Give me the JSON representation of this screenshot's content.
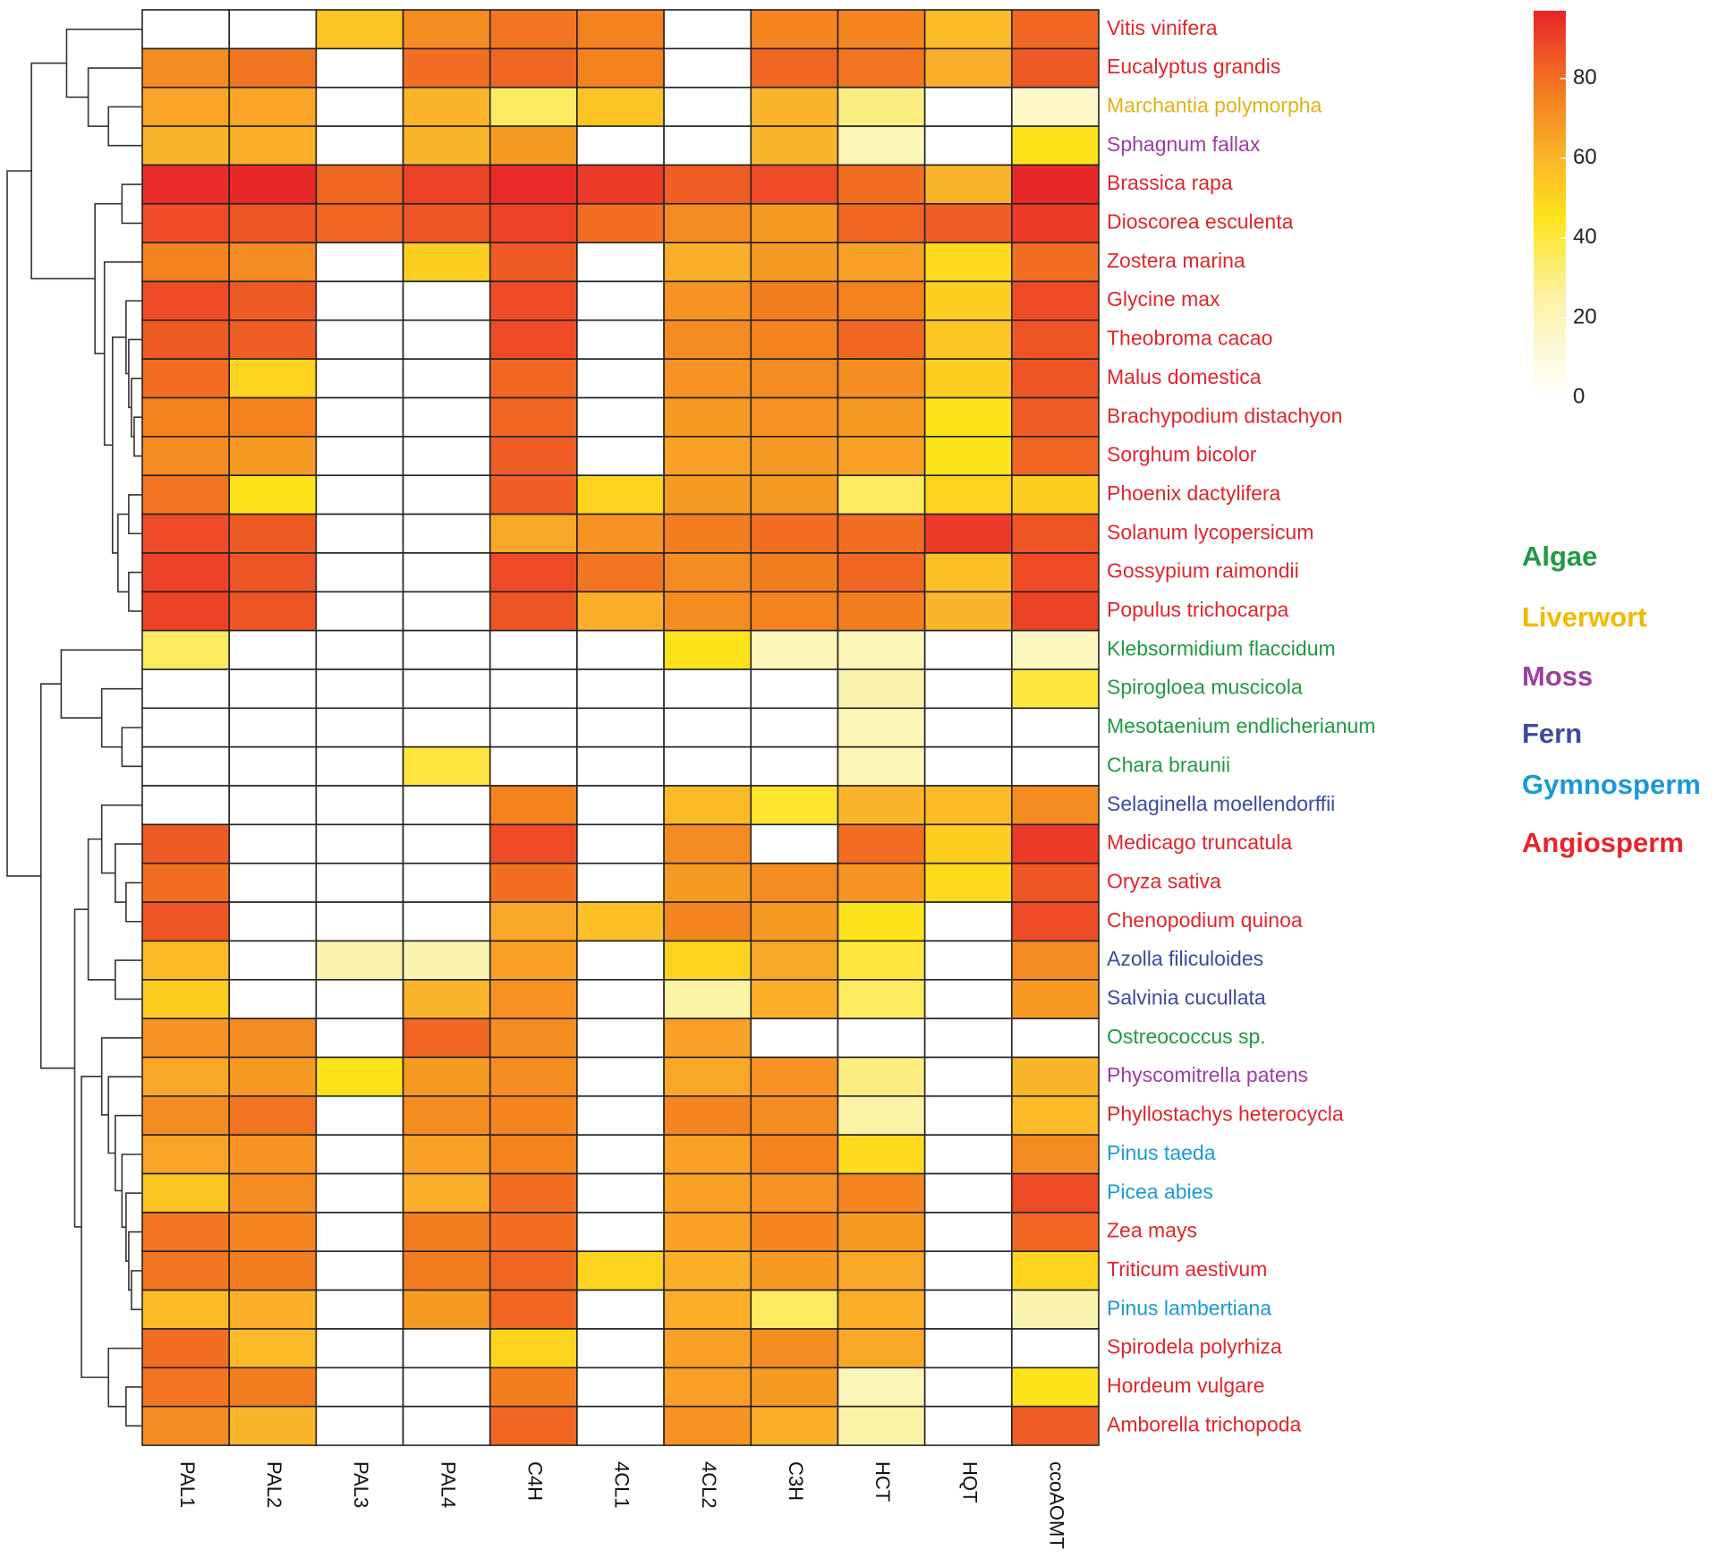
{
  "chart_data": {
    "type": "heatmap",
    "rows": [
      "Vitis vinifera",
      "Eucalyptus grandis",
      "Marchantia polymorpha",
      "Sphagnum fallax",
      "Brassica rapa",
      "Dioscorea esculenta",
      "Zostera marina",
      "Glycine max",
      "Theobroma cacao",
      "Malus domestica",
      "Brachypodium distachyon",
      "Sorghum bicolor",
      "Phoenix dactylifera",
      "Solanum lycopersicum",
      "Gossypium raimondii",
      "Populus trichocarpa",
      "Klebsormidium flaccidum",
      "Spirogloea muscicola",
      "Mesotaenium endlicherianum",
      "Chara braunii",
      "Selaginella moellendorffii",
      "Medicago truncatula",
      "Oryza sativa",
      "Chenopodium quinoa",
      "Azolla filiculoides",
      "Salvinia cucullata",
      "Ostreococcus sp.",
      "Physcomitrella patens",
      "Phyllostachys heterocycla",
      "Pinus taeda",
      "Picea abies",
      "Zea mays",
      "Triticum aestivum",
      "Pinus lambertiana",
      "Spirodela polyrhiza",
      "Hordeum vulgare",
      "Amborella trichopoda"
    ],
    "row_colors": [
      "#e0262b",
      "#e0262b",
      "#e0b414",
      "#9b3fa0",
      "#e0262b",
      "#e0262b",
      "#e0262b",
      "#e0262b",
      "#e0262b",
      "#e0262b",
      "#e0262b",
      "#e0262b",
      "#e0262b",
      "#e0262b",
      "#e0262b",
      "#e0262b",
      "#1f9a45",
      "#1f9a45",
      "#1f9a45",
      "#1f9a45",
      "#3d4aa0",
      "#e0262b",
      "#e0262b",
      "#e0262b",
      "#3d4aa0",
      "#3d4aa0",
      "#1f9a45",
      "#9b3fa0",
      "#e0262b",
      "#1a9ad6",
      "#1a9ad6",
      "#e0262b",
      "#e0262b",
      "#1a9ad6",
      "#e0262b",
      "#e0262b",
      "#e0262b"
    ],
    "columns": [
      "PAL1",
      "PAL2",
      "PAL3",
      "PAL4",
      "C4H",
      "4CL1",
      "4CL2",
      "C3H",
      "HCT",
      "HQT",
      "ccoAOMT"
    ],
    "values": [
      [
        0,
        0,
        55,
        72,
        78,
        75,
        0,
        74,
        74,
        58,
        82
      ],
      [
        72,
        78,
        0,
        80,
        82,
        75,
        0,
        82,
        78,
        62,
        85
      ],
      [
        65,
        65,
        0,
        60,
        35,
        55,
        0,
        60,
        30,
        0,
        15
      ],
      [
        60,
        62,
        0,
        60,
        68,
        0,
        0,
        60,
        20,
        0,
        45
      ],
      [
        95,
        96,
        82,
        90,
        95,
        92,
        84,
        88,
        80,
        60,
        96
      ],
      [
        88,
        86,
        82,
        86,
        90,
        80,
        72,
        68,
        82,
        84,
        92
      ],
      [
        75,
        72,
        0,
        52,
        85,
        0,
        62,
        68,
        66,
        48,
        80
      ],
      [
        88,
        85,
        0,
        0,
        88,
        0,
        70,
        76,
        75,
        52,
        88
      ],
      [
        85,
        84,
        0,
        0,
        88,
        0,
        72,
        75,
        82,
        55,
        86
      ],
      [
        80,
        50,
        0,
        0,
        82,
        0,
        70,
        72,
        72,
        52,
        86
      ],
      [
        75,
        75,
        0,
        0,
        82,
        0,
        68,
        70,
        68,
        45,
        84
      ],
      [
        72,
        68,
        0,
        0,
        84,
        0,
        66,
        68,
        66,
        45,
        82
      ],
      [
        78,
        45,
        0,
        0,
        84,
        50,
        68,
        68,
        35,
        50,
        52
      ],
      [
        88,
        85,
        0,
        0,
        64,
        70,
        76,
        80,
        80,
        92,
        86
      ],
      [
        90,
        86,
        0,
        0,
        88,
        78,
        72,
        76,
        82,
        56,
        88
      ],
      [
        90,
        86,
        0,
        0,
        86,
        62,
        72,
        75,
        76,
        60,
        90
      ],
      [
        35,
        0,
        0,
        0,
        0,
        0,
        45,
        20,
        20,
        0,
        18
      ],
      [
        0,
        0,
        0,
        0,
        0,
        0,
        0,
        0,
        22,
        0,
        40
      ],
      [
        0,
        0,
        0,
        0,
        0,
        0,
        0,
        0,
        20,
        0,
        0
      ],
      [
        0,
        0,
        0,
        40,
        0,
        0,
        0,
        0,
        20,
        0,
        0
      ],
      [
        0,
        0,
        0,
        0,
        75,
        0,
        58,
        42,
        60,
        58,
        72
      ],
      [
        85,
        0,
        0,
        0,
        88,
        0,
        72,
        0,
        80,
        52,
        92
      ],
      [
        80,
        0,
        0,
        0,
        80,
        0,
        68,
        72,
        70,
        48,
        86
      ],
      [
        86,
        0,
        0,
        0,
        64,
        56,
        74,
        68,
        45,
        0,
        88
      ],
      [
        58,
        0,
        22,
        22,
        66,
        0,
        50,
        64,
        40,
        0,
        72
      ],
      [
        52,
        0,
        0,
        60,
        70,
        0,
        25,
        62,
        35,
        0,
        68
      ],
      [
        70,
        72,
        0,
        82,
        72,
        0,
        66,
        0,
        0,
        0,
        0
      ],
      [
        64,
        68,
        45,
        68,
        72,
        0,
        64,
        70,
        30,
        0,
        60
      ],
      [
        72,
        78,
        0,
        72,
        74,
        0,
        74,
        72,
        25,
        0,
        58
      ],
      [
        65,
        70,
        0,
        66,
        75,
        0,
        66,
        75,
        48,
        0,
        72
      ],
      [
        55,
        72,
        0,
        62,
        80,
        0,
        66,
        70,
        74,
        0,
        88
      ],
      [
        78,
        74,
        0,
        76,
        80,
        0,
        66,
        74,
        68,
        0,
        82
      ],
      [
        78,
        76,
        0,
        76,
        82,
        50,
        62,
        68,
        64,
        0,
        50
      ],
      [
        58,
        62,
        0,
        68,
        82,
        0,
        62,
        35,
        62,
        0,
        22
      ],
      [
        80,
        58,
        0,
        0,
        50,
        0,
        66,
        72,
        64,
        0,
        0
      ],
      [
        78,
        76,
        0,
        0,
        76,
        0,
        66,
        68,
        20,
        0,
        45
      ],
      [
        72,
        60,
        0,
        0,
        82,
        0,
        70,
        62,
        25,
        0,
        84
      ]
    ],
    "clim": [
      0,
      97
    ],
    "cticks": [
      0,
      20,
      40,
      60,
      80
    ],
    "colorscale": [
      [
        0,
        "#ffffff"
      ],
      [
        25,
        "#fbf2a6"
      ],
      [
        45,
        "#fde31b"
      ],
      [
        60,
        "#fbb52a"
      ],
      [
        75,
        "#f4821f"
      ],
      [
        85,
        "#ee5a24"
      ],
      [
        97,
        "#e8232a"
      ]
    ],
    "legend": [
      {
        "name": "Algae",
        "color": "#1f9a45"
      },
      {
        "name": "Liverwort",
        "color": "#f5b800"
      },
      {
        "name": "Moss",
        "color": "#9b3fa0"
      },
      {
        "name": "Fern",
        "color": "#3d4aa0"
      },
      {
        "name": "Gymnosperm",
        "color": "#1a9ad6"
      },
      {
        "name": "Angiosperm",
        "color": "#e8232a"
      }
    ]
  }
}
